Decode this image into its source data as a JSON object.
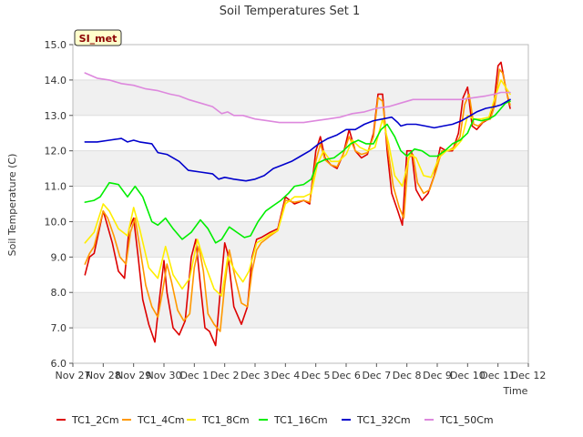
{
  "chart_data": {
    "type": "line",
    "title": "Soil Temperatures Set 1",
    "xlabel": "Time",
    "ylabel": "Soil Temperature (C)",
    "xlim": [
      0,
      15
    ],
    "ylim": [
      6.0,
      15.0
    ],
    "xtick_labels": [
      "Nov 27",
      "Nov 28",
      "Nov 29",
      "Nov 30",
      "Dec 1",
      "Dec 2",
      "Dec 3",
      "Dec 4",
      "Dec 5",
      "Dec 6",
      "Dec 7",
      "Dec 8",
      "Dec 9",
      "Dec 10",
      "Dec 11",
      "Dec 12"
    ],
    "yticks": [
      6.0,
      7.0,
      8.0,
      9.0,
      10.0,
      11.0,
      12.0,
      13.0,
      14.0,
      15.0
    ],
    "ytick_labels": [
      "6.0",
      "7.0",
      "8.0",
      "9.0",
      "10.0",
      "11.0",
      "12.0",
      "13.0",
      "14.0",
      "15.0"
    ],
    "annotation": "SI_met",
    "grid": true,
    "legend_position": "bottom",
    "series": [
      {
        "name": "TC1_2Cm",
        "color": "#dd0000",
        "x": [
          0.4,
          0.55,
          0.7,
          0.85,
          1.0,
          1.1,
          1.3,
          1.5,
          1.7,
          1.85,
          2.0,
          2.15,
          2.3,
          2.5,
          2.7,
          2.85,
          3.0,
          3.1,
          3.3,
          3.5,
          3.7,
          3.9,
          4.05,
          4.2,
          4.35,
          4.5,
          4.7,
          4.85,
          5.0,
          5.1,
          5.3,
          5.55,
          5.75,
          5.9,
          6.05,
          6.2,
          6.5,
          6.75,
          7.0,
          7.3,
          7.6,
          7.8,
          8.0,
          8.15,
          8.3,
          8.5,
          8.7,
          8.9,
          9.1,
          9.3,
          9.5,
          9.7,
          9.9,
          10.05,
          10.2,
          10.35,
          10.5,
          10.7,
          10.85,
          11.0,
          11.15,
          11.3,
          11.5,
          11.7,
          11.9,
          12.1,
          12.3,
          12.5,
          12.7,
          12.85,
          13.0,
          13.15,
          13.3,
          13.5,
          13.7,
          13.85,
          14.0,
          14.1,
          14.25,
          14.4
        ],
        "values": [
          8.5,
          9.0,
          9.1,
          9.7,
          10.3,
          10.0,
          9.4,
          8.6,
          8.4,
          9.8,
          10.1,
          9.0,
          7.8,
          7.1,
          6.6,
          7.8,
          8.9,
          8.0,
          7.0,
          6.8,
          7.2,
          9.0,
          9.5,
          8.2,
          7.0,
          6.9,
          6.5,
          8.0,
          9.4,
          9.1,
          7.6,
          7.1,
          7.6,
          9.0,
          9.5,
          9.55,
          9.7,
          9.8,
          10.7,
          10.5,
          10.6,
          10.5,
          12.0,
          12.4,
          11.8,
          11.6,
          11.5,
          11.9,
          12.6,
          12.0,
          11.8,
          11.9,
          12.5,
          13.6,
          13.6,
          12.0,
          10.8,
          10.3,
          9.9,
          12.0,
          12.0,
          10.9,
          10.6,
          10.8,
          11.3,
          12.1,
          12.0,
          12.0,
          12.5,
          13.5,
          13.8,
          12.7,
          12.6,
          12.8,
          12.9,
          13.2,
          14.4,
          14.5,
          13.8,
          13.2
        ]
      },
      {
        "name": "TC1_4Cm",
        "color": "#ff9900",
        "x": [
          0.4,
          0.55,
          0.7,
          0.85,
          1.0,
          1.15,
          1.35,
          1.55,
          1.75,
          1.9,
          2.05,
          2.2,
          2.4,
          2.6,
          2.8,
          2.95,
          3.1,
          3.25,
          3.45,
          3.65,
          3.85,
          4.0,
          4.15,
          4.3,
          4.45,
          4.65,
          4.85,
          5.0,
          5.15,
          5.35,
          5.55,
          5.75,
          5.9,
          6.05,
          6.2,
          6.5,
          6.75,
          7.0,
          7.3,
          7.6,
          7.8,
          8.0,
          8.15,
          8.3,
          8.5,
          8.7,
          8.9,
          9.1,
          9.3,
          9.5,
          9.7,
          9.9,
          10.05,
          10.2,
          10.35,
          10.55,
          10.75,
          10.9,
          11.05,
          11.2,
          11.35,
          11.55,
          11.75,
          11.95,
          12.15,
          12.35,
          12.55,
          12.75,
          12.9,
          13.05,
          13.2,
          13.35,
          13.55,
          13.75,
          13.9,
          14.05,
          14.15,
          14.3,
          14.4
        ],
        "values": [
          8.8,
          9.1,
          9.3,
          9.8,
          10.3,
          10.1,
          9.6,
          9.0,
          8.8,
          9.7,
          10.1,
          9.3,
          8.2,
          7.6,
          7.3,
          8.0,
          8.8,
          8.3,
          7.5,
          7.2,
          7.4,
          8.7,
          9.3,
          8.6,
          7.4,
          7.1,
          6.9,
          8.2,
          9.2,
          8.4,
          7.7,
          7.6,
          8.6,
          9.2,
          9.4,
          9.6,
          9.75,
          10.6,
          10.55,
          10.6,
          10.55,
          11.7,
          12.2,
          11.75,
          11.6,
          11.55,
          11.9,
          12.4,
          12.0,
          11.9,
          11.95,
          12.4,
          13.5,
          13.4,
          12.2,
          11.0,
          10.4,
          10.1,
          11.8,
          11.9,
          11.1,
          10.8,
          10.9,
          11.4,
          12.0,
          12.0,
          12.1,
          12.4,
          13.3,
          13.6,
          12.75,
          12.7,
          12.85,
          12.9,
          13.3,
          14.3,
          14.2,
          13.6,
          13.3
        ]
      },
      {
        "name": "TC1_8Cm",
        "color": "#ffee00",
        "x": [
          0.4,
          0.7,
          1.0,
          1.2,
          1.5,
          1.8,
          2.0,
          2.2,
          2.5,
          2.8,
          3.05,
          3.3,
          3.6,
          3.85,
          4.1,
          4.35,
          4.65,
          4.9,
          5.1,
          5.35,
          5.6,
          5.8,
          6.05,
          6.25,
          6.5,
          6.75,
          7.0,
          7.3,
          7.6,
          7.85,
          8.05,
          8.25,
          8.5,
          8.75,
          9.0,
          9.2,
          9.45,
          9.7,
          9.95,
          10.2,
          10.4,
          10.6,
          10.85,
          11.1,
          11.3,
          11.55,
          11.8,
          12.05,
          12.3,
          12.55,
          12.8,
          13.0,
          13.2,
          13.45,
          13.7,
          13.9,
          14.1,
          14.25,
          14.4
        ],
        "values": [
          9.4,
          9.7,
          10.5,
          10.3,
          9.8,
          9.6,
          10.4,
          9.8,
          8.7,
          8.4,
          9.3,
          8.5,
          8.1,
          8.4,
          9.5,
          8.8,
          8.1,
          7.9,
          9.0,
          8.6,
          8.3,
          8.6,
          9.4,
          9.5,
          9.65,
          9.75,
          10.5,
          10.7,
          10.7,
          10.8,
          11.6,
          12.0,
          11.7,
          11.7,
          11.9,
          12.3,
          12.1,
          12.0,
          12.1,
          12.9,
          12.2,
          11.3,
          11.0,
          11.9,
          11.8,
          11.3,
          11.25,
          11.8,
          12.0,
          12.05,
          12.3,
          13.0,
          12.9,
          12.9,
          12.95,
          13.5,
          14.0,
          13.8,
          13.6
        ]
      },
      {
        "name": "TC1_16Cm",
        "color": "#00ee00",
        "x": [
          0.4,
          0.7,
          0.9,
          1.2,
          1.5,
          1.8,
          2.05,
          2.3,
          2.6,
          2.8,
          3.05,
          3.3,
          3.6,
          3.9,
          4.2,
          4.45,
          4.7,
          4.9,
          5.15,
          5.4,
          5.65,
          5.85,
          6.1,
          6.35,
          6.6,
          6.85,
          7.1,
          7.3,
          7.6,
          7.85,
          8.05,
          8.3,
          8.6,
          8.9,
          9.15,
          9.4,
          9.65,
          9.9,
          10.15,
          10.35,
          10.6,
          10.8,
          11.0,
          11.25,
          11.5,
          11.75,
          12.0,
          12.25,
          12.5,
          12.75,
          13.0,
          13.2,
          13.45,
          13.7,
          13.9,
          14.1,
          14.25,
          14.4
        ],
        "values": [
          10.55,
          10.6,
          10.7,
          11.1,
          11.05,
          10.7,
          11.0,
          10.7,
          10.0,
          9.9,
          10.1,
          9.8,
          9.5,
          9.7,
          10.05,
          9.8,
          9.4,
          9.5,
          9.85,
          9.7,
          9.55,
          9.6,
          10.0,
          10.3,
          10.45,
          10.6,
          10.8,
          11.0,
          11.05,
          11.2,
          11.65,
          11.75,
          11.8,
          12.0,
          12.2,
          12.3,
          12.2,
          12.2,
          12.6,
          12.75,
          12.4,
          12.0,
          11.85,
          12.05,
          12.0,
          11.85,
          11.85,
          12.0,
          12.2,
          12.3,
          12.5,
          12.9,
          12.85,
          12.9,
          13.0,
          13.2,
          13.35,
          13.4
        ]
      },
      {
        "name": "TC1_32Cm",
        "color": "#0000cc",
        "x": [
          0.4,
          0.8,
          1.2,
          1.6,
          1.8,
          2.0,
          2.2,
          2.6,
          2.8,
          3.1,
          3.5,
          3.8,
          4.2,
          4.6,
          4.8,
          5.0,
          5.3,
          5.7,
          6.0,
          6.3,
          6.6,
          6.9,
          7.2,
          7.5,
          7.8,
          8.1,
          8.4,
          8.7,
          9.0,
          9.3,
          9.6,
          9.9,
          10.2,
          10.5,
          10.7,
          10.8,
          11.0,
          11.3,
          11.6,
          11.9,
          12.2,
          12.5,
          12.8,
          13.1,
          13.3,
          13.6,
          13.9,
          14.1,
          14.4
        ],
        "values": [
          12.25,
          12.25,
          12.3,
          12.35,
          12.25,
          12.3,
          12.25,
          12.2,
          11.95,
          11.9,
          11.7,
          11.45,
          11.4,
          11.35,
          11.2,
          11.25,
          11.2,
          11.15,
          11.2,
          11.3,
          11.5,
          11.6,
          11.7,
          11.85,
          12.0,
          12.2,
          12.35,
          12.45,
          12.6,
          12.6,
          12.75,
          12.85,
          12.9,
          12.95,
          12.8,
          12.7,
          12.75,
          12.75,
          12.7,
          12.65,
          12.7,
          12.75,
          12.85,
          13.0,
          13.1,
          13.2,
          13.25,
          13.3,
          13.45
        ]
      },
      {
        "name": "TC1_50Cm",
        "color": "#dd88dd",
        "x": [
          0.4,
          0.8,
          1.2,
          1.6,
          2.0,
          2.4,
          2.8,
          3.2,
          3.5,
          3.8,
          4.2,
          4.6,
          4.9,
          5.1,
          5.3,
          5.6,
          6.0,
          6.4,
          6.8,
          7.2,
          7.6,
          8.0,
          8.4,
          8.8,
          9.2,
          9.6,
          10.0,
          10.4,
          10.8,
          11.2,
          11.6,
          12.0,
          12.4,
          12.8,
          13.2,
          13.6,
          13.9,
          14.1,
          14.4
        ],
        "values": [
          14.2,
          14.05,
          14.0,
          13.9,
          13.85,
          13.75,
          13.7,
          13.6,
          13.55,
          13.45,
          13.35,
          13.25,
          13.05,
          13.1,
          13.0,
          13.0,
          12.9,
          12.85,
          12.8,
          12.8,
          12.8,
          12.85,
          12.9,
          12.95,
          13.05,
          13.1,
          13.2,
          13.25,
          13.35,
          13.45,
          13.45,
          13.45,
          13.45,
          13.45,
          13.5,
          13.55,
          13.6,
          13.65,
          13.65
        ]
      }
    ]
  }
}
